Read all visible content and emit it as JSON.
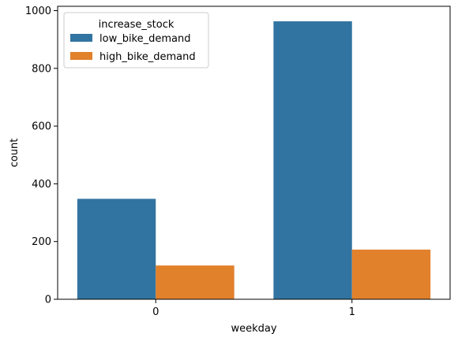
{
  "chart_data": {
    "type": "bar",
    "title": "",
    "xlabel": "weekday",
    "ylabel": "count",
    "categories": [
      "0",
      "1"
    ],
    "ylim": [
      0,
      1015
    ],
    "yticks": [
      0,
      200,
      400,
      600,
      800,
      1000
    ],
    "grid": false,
    "legend": {
      "title": "increase_stock",
      "placement": "top-left"
    },
    "series": [
      {
        "name": "low_bike_demand",
        "color": "#3274a1",
        "values": [
          348,
          963
        ]
      },
      {
        "name": "high_bike_demand",
        "color": "#e1812c",
        "values": [
          117,
          172
        ]
      }
    ]
  }
}
